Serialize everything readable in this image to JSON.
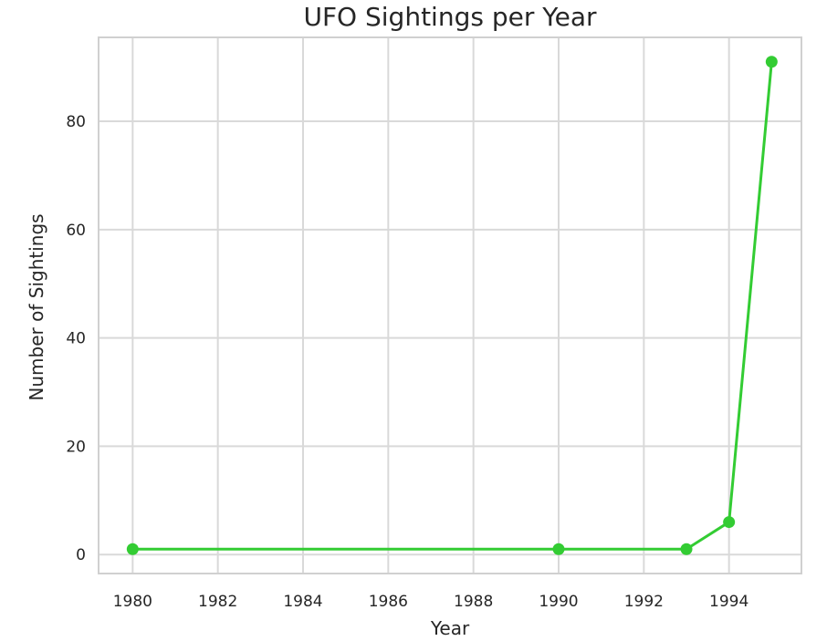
{
  "chart_data": {
    "type": "line",
    "title": "UFO Sightings per Year",
    "xlabel": "Year",
    "ylabel": "Number of Sightings",
    "x": [
      1980,
      1990,
      1993,
      1994,
      1995
    ],
    "series": [
      {
        "values": [
          1,
          1,
          1,
          6,
          91
        ]
      }
    ],
    "xlim": [
      1979.2,
      1995.7
    ],
    "ylim": [
      -3.5,
      95.5
    ],
    "xticks": [
      1980,
      1982,
      1984,
      1986,
      1988,
      1990,
      1992,
      1994
    ],
    "yticks": [
      0,
      20,
      40,
      60,
      80
    ],
    "grid": true,
    "line_color": "#33cc33",
    "marker": "circle"
  }
}
